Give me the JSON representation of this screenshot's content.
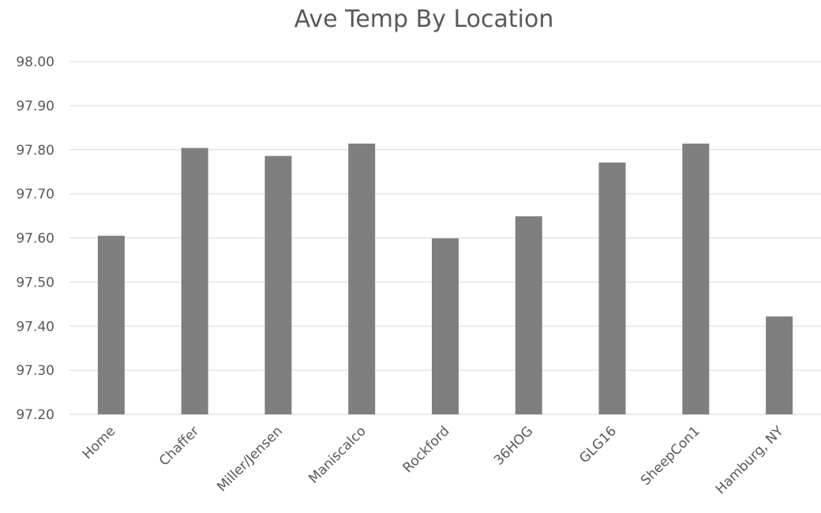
{
  "chart_data": {
    "type": "bar",
    "title": "Ave Temp By Location",
    "xlabel": "",
    "ylabel": "",
    "categories": [
      "Home",
      "Chaffer",
      "Miller/Jensen",
      "Maniscalco",
      "Rockford",
      "36HOG",
      "GLG16",
      "SheepCon1",
      "Hamburg, NY"
    ],
    "series": [
      {
        "values": [
          97.605,
          97.804,
          97.786,
          97.814,
          97.599,
          97.649,
          97.771,
          97.814,
          97.422
        ],
        "color": "#7f7f7f"
      }
    ],
    "ylim": [
      97.2,
      98.0
    ],
    "yticks": [
      "97.20",
      "97.30",
      "97.40",
      "97.50",
      "97.60",
      "97.70",
      "97.80",
      "97.90",
      "98.00"
    ],
    "grid": true,
    "legend": "none"
  }
}
